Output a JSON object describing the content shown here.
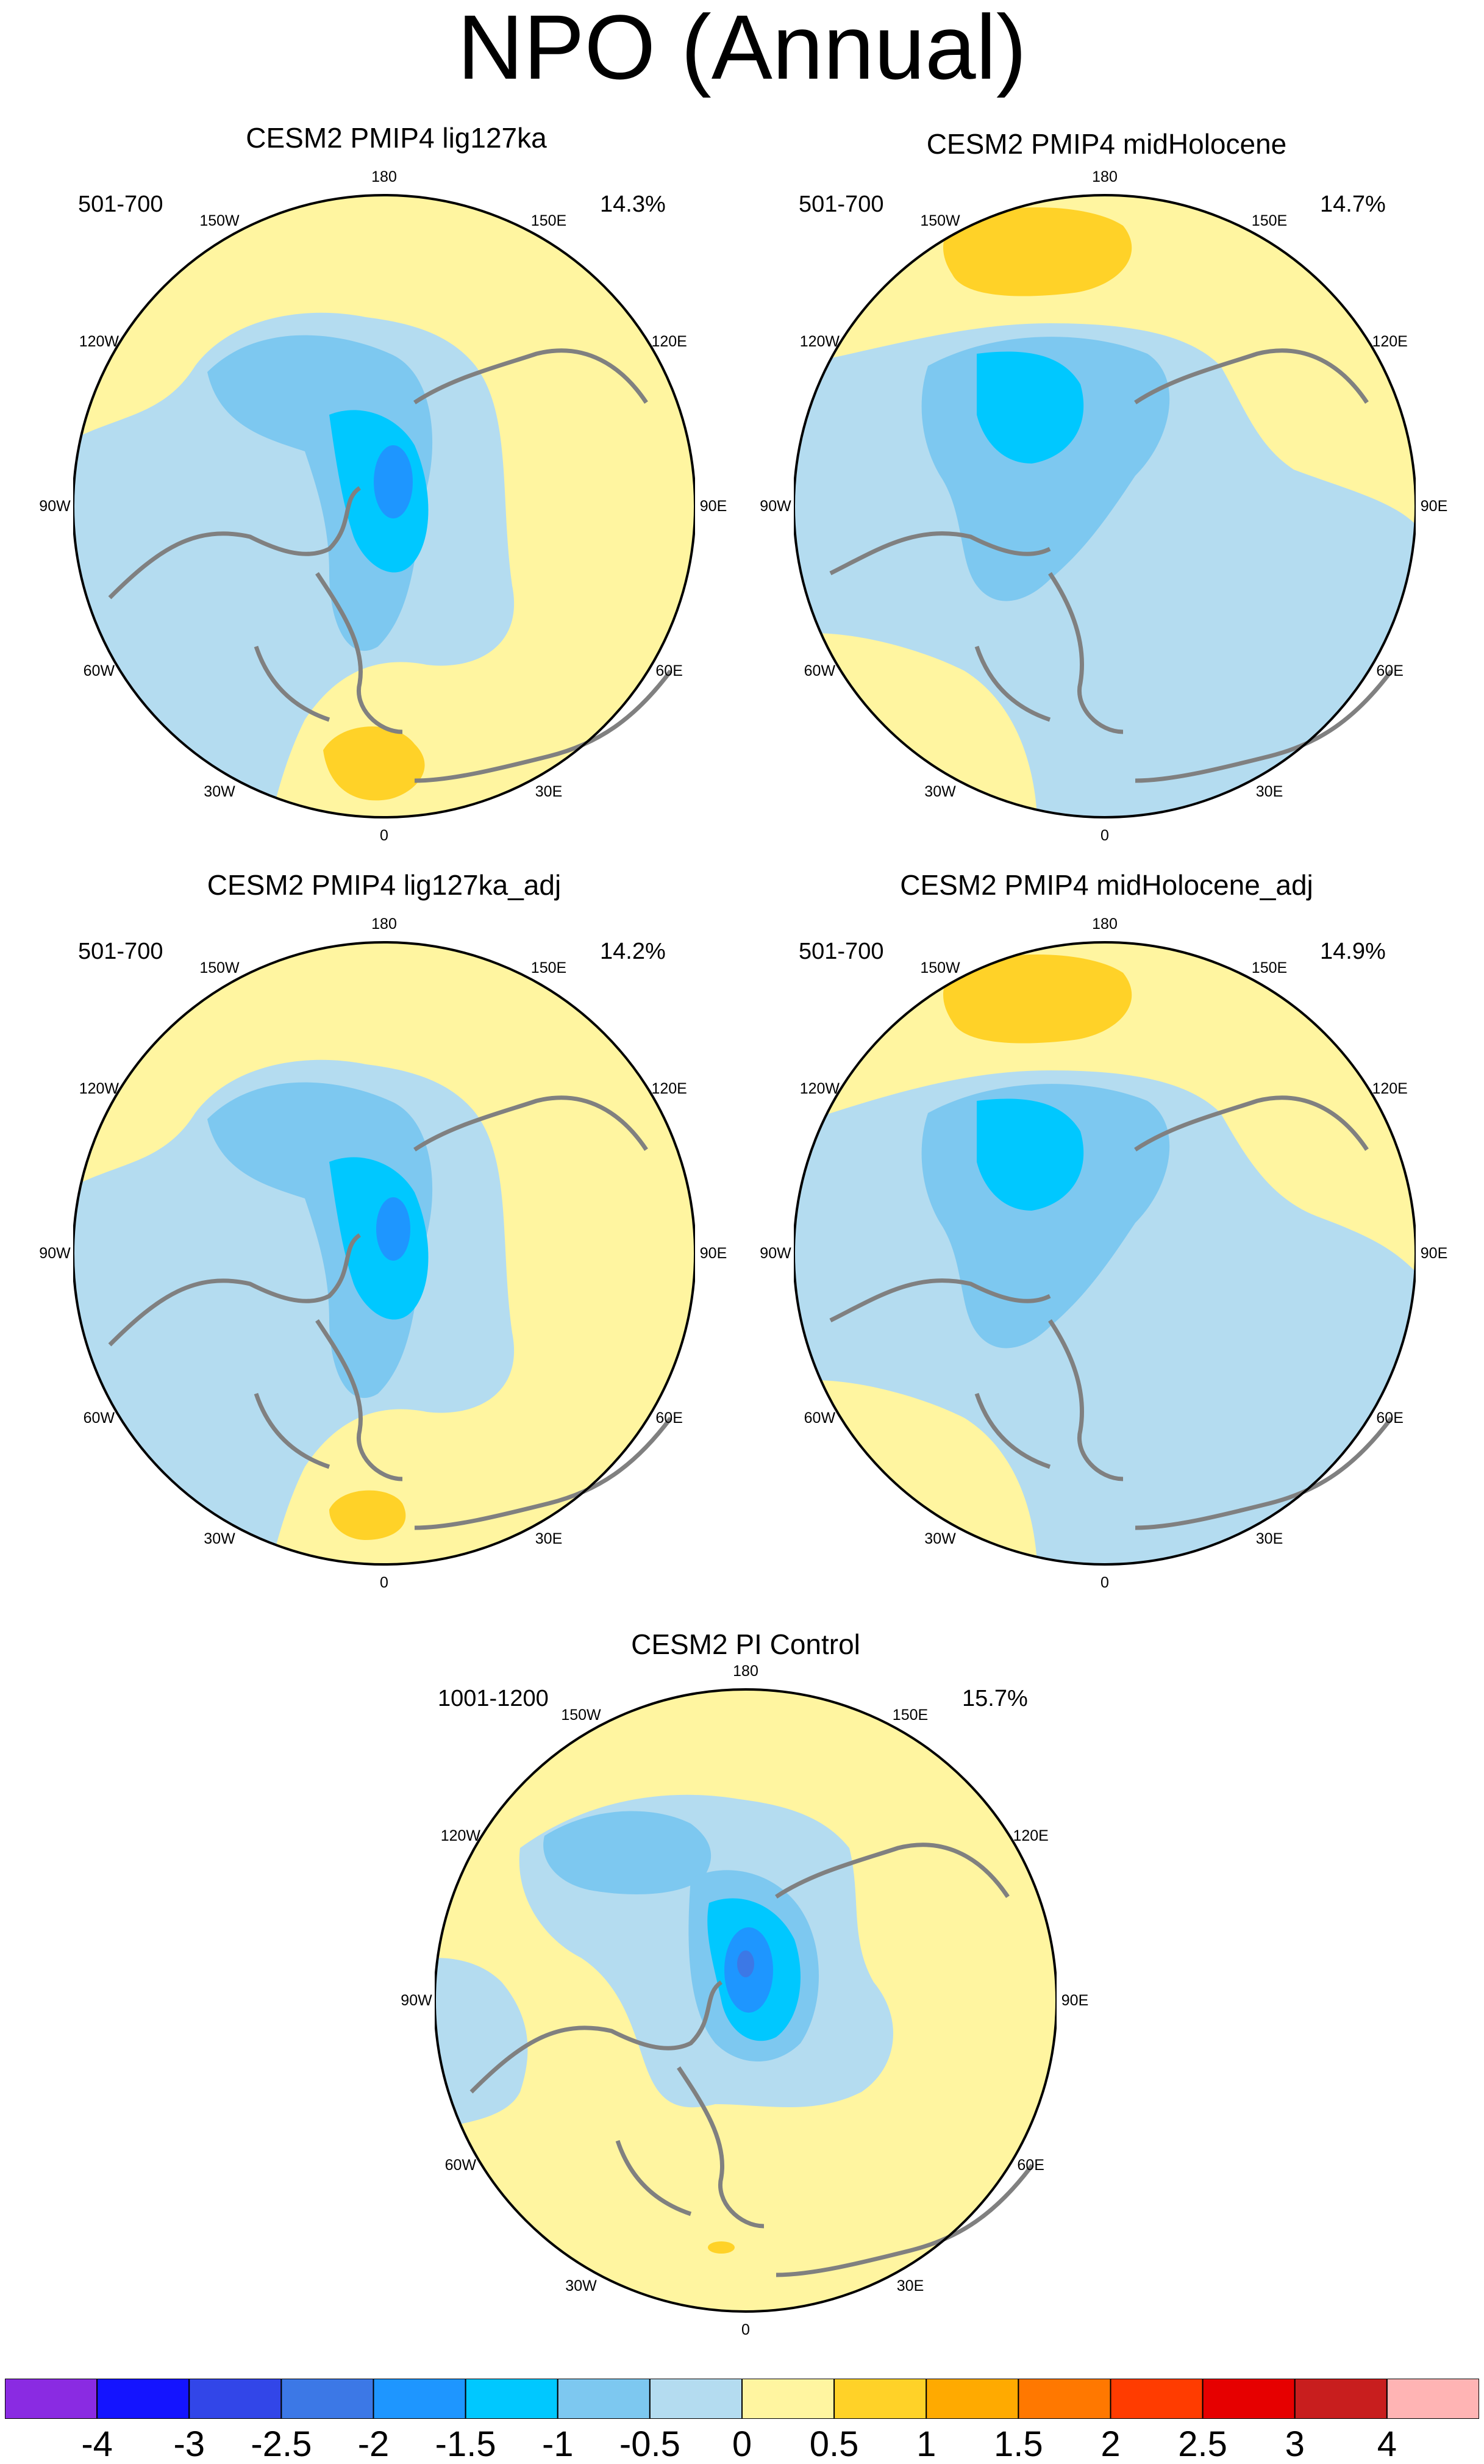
{
  "title": "NPO (Annual)",
  "panels": [
    {
      "title": "CESM2 PMIP4 lig127ka",
      "years": "501-700",
      "percent": "14.3%"
    },
    {
      "title": "CESM2 PMIP4 midHolocene",
      "years": "501-700",
      "percent": "14.7%"
    },
    {
      "title": "CESM2 PMIP4 lig127ka_adj",
      "years": "501-700",
      "percent": "14.2%"
    },
    {
      "title": "CESM2 PMIP4 midHolocene_adj",
      "years": "501-700",
      "percent": "14.9%"
    },
    {
      "title": "CESM2 PI Control",
      "years": "1001-1200",
      "percent": "15.7%"
    }
  ],
  "longitude_labels": [
    "180",
    "150E",
    "120E",
    "90E",
    "60E",
    "30E",
    "0",
    "30W",
    "60W",
    "90W",
    "120W",
    "150W"
  ],
  "colorbar": {
    "labels": [
      "-4",
      "-3",
      "-2.5",
      "-2",
      "-1.5",
      "-1",
      "-0.5",
      "0",
      "0.5",
      "1",
      "1.5",
      "2",
      "2.5",
      "3",
      "4"
    ],
    "colors": [
      "#8a2be2",
      "#1414ff",
      "#3246e8",
      "#3c78e6",
      "#1e96ff",
      "#00c8ff",
      "#7dc8f0",
      "#b4dcf0",
      "#fff5a0",
      "#ffd228",
      "#ffaa00",
      "#ff7800",
      "#ff3c00",
      "#e60000",
      "#c81e1e",
      "#ffb4b4"
    ]
  },
  "fills": {
    "land_outline": "#808080",
    "ring": "#000000"
  }
}
